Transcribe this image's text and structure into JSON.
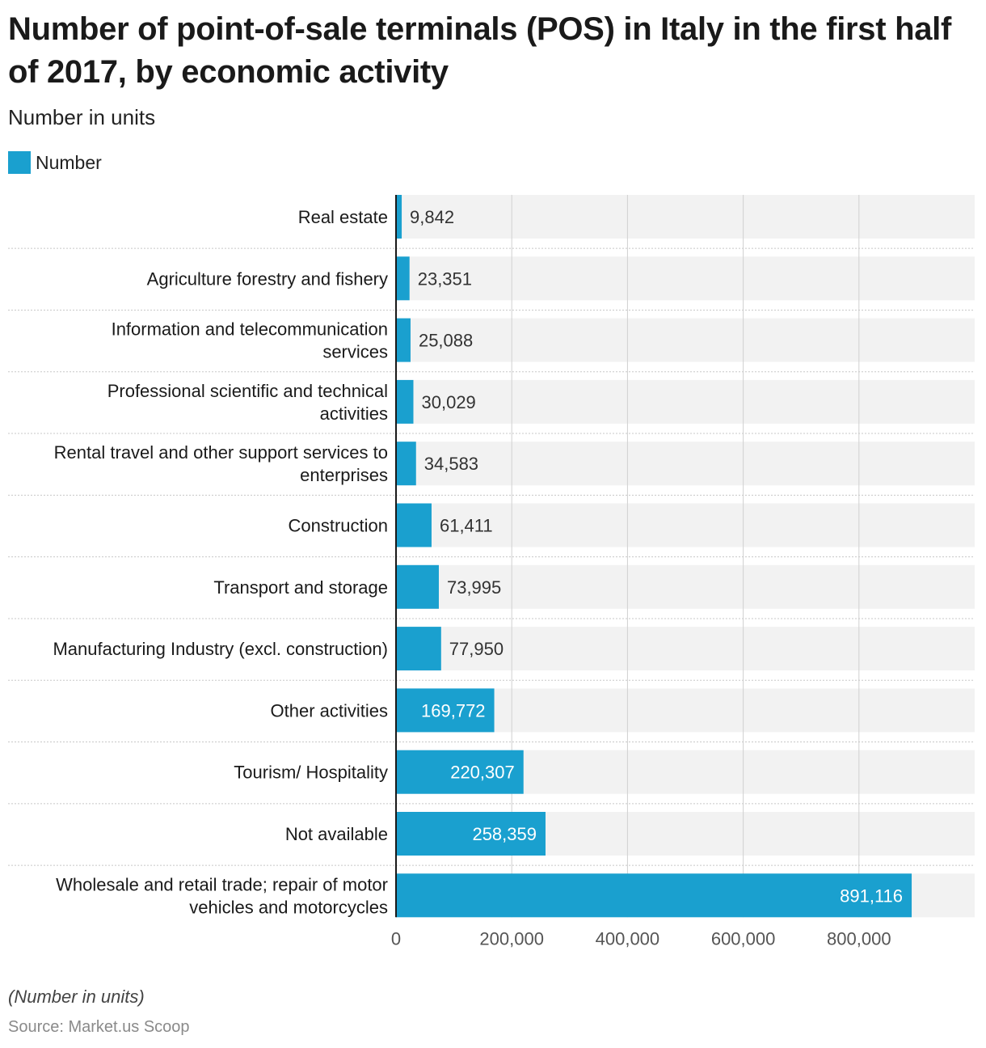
{
  "title": "Number of point-of-sale terminals (POS) in Italy in the first half of 2017, by economic activity",
  "subtitle": "Number in units",
  "legend": {
    "label": "Number",
    "color": "#1aa0cf"
  },
  "note": "(Number in units)",
  "source": "Source: Market.us Scoop",
  "chart_data": {
    "type": "bar",
    "orientation": "horizontal",
    "categories": [
      [
        "Real estate"
      ],
      [
        "Agriculture forestry and fishery"
      ],
      [
        "Information and telecommunication",
        "services"
      ],
      [
        "Professional scientific and technical",
        "activities"
      ],
      [
        "Rental travel and other support services to",
        "enterprises"
      ],
      [
        "Construction"
      ],
      [
        "Transport and storage"
      ],
      [
        "Manufacturing Industry (excl. construction)"
      ],
      [
        "Other activities"
      ],
      [
        "Tourism/ Hospitality"
      ],
      [
        "Not available"
      ],
      [
        "Wholesale and retail trade; repair of motor",
        "vehicles and motorcycles"
      ]
    ],
    "series": [
      {
        "name": "Number",
        "values": [
          9842,
          23351,
          25088,
          30029,
          34583,
          61411,
          73995,
          77950,
          169772,
          220307,
          258359,
          891116
        ],
        "value_labels": [
          "9,842",
          "23,351",
          "25,088",
          "30,029",
          "34,583",
          "61,411",
          "73,995",
          "77,950",
          "169,772",
          "220,307",
          "258,359",
          "891,116"
        ]
      }
    ],
    "xlim": [
      0,
      1000000
    ],
    "x_ticks": [
      0,
      200000,
      400000,
      600000,
      800000
    ],
    "x_tick_labels": [
      "0",
      "200,000",
      "400,000",
      "600,000",
      "800,000"
    ],
    "xlabel": "",
    "ylabel": "",
    "grid": true,
    "legend_position": "top-left",
    "colors": {
      "bar": "#1aa0cf",
      "track": "#f2f2f2",
      "grid": "#d0d0d0",
      "axis": "#1a1a1a",
      "separator": "#c8c8c8",
      "label_outside": "#333333",
      "label_inside": "#ffffff"
    }
  }
}
